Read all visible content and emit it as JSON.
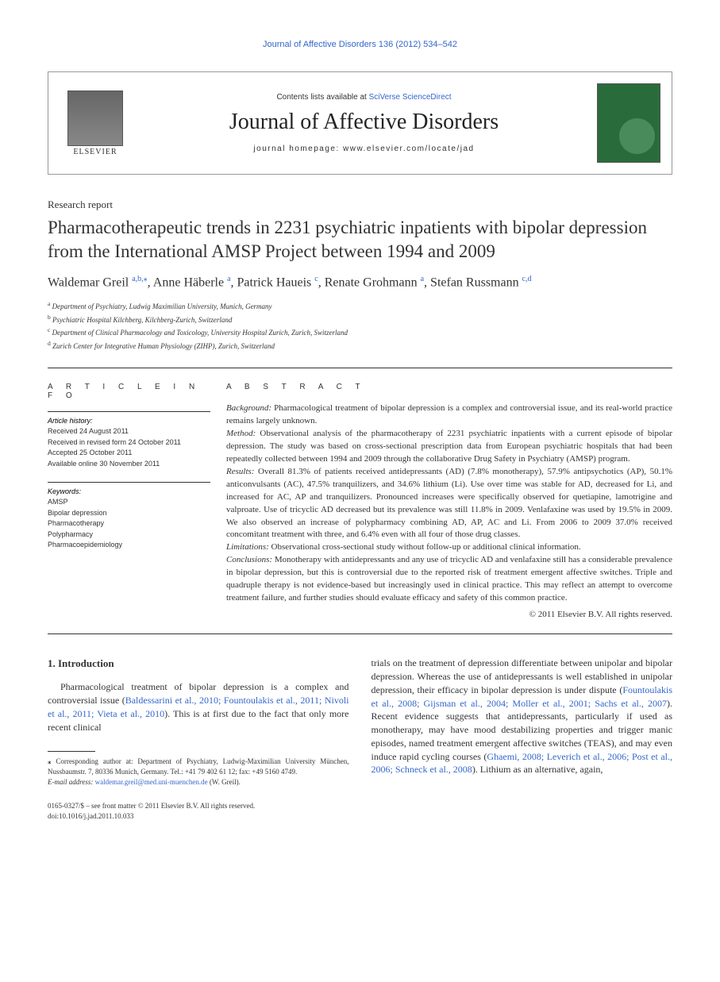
{
  "running_header": "Journal of Affective Disorders 136 (2012) 534–542",
  "masthead": {
    "contents_prefix": "Contents lists available at ",
    "contents_link": "SciVerse ScienceDirect",
    "journal_name": "Journal of Affective Disorders",
    "homepage_prefix": "journal homepage: ",
    "homepage_url": "www.elsevier.com/locate/jad",
    "publisher": "ELSEVIER"
  },
  "article_type": "Research report",
  "title": "Pharmacotherapeutic trends in 2231 psychiatric inpatients with bipolar depression from the International AMSP Project between 1994 and 2009",
  "authors": [
    {
      "name": "Waldemar Greil",
      "aff": "a,b,",
      "corr": true
    },
    {
      "name": "Anne Häberle",
      "aff": "a"
    },
    {
      "name": "Patrick Haueis",
      "aff": "c"
    },
    {
      "name": "Renate Grohmann",
      "aff": "a"
    },
    {
      "name": "Stefan Russmann",
      "aff": "c,d"
    }
  ],
  "affiliations": [
    {
      "key": "a",
      "text": "Department of Psychiatry, Ludwig Maximilian University, Munich, Germany"
    },
    {
      "key": "b",
      "text": "Psychiatric Hospital Kilchberg, Kilchberg-Zurich, Switzerland"
    },
    {
      "key": "c",
      "text": "Department of Clinical Pharmacology and Toxicology, University Hospital Zurich, Zurich, Switzerland"
    },
    {
      "key": "d",
      "text": "Zurich Center for Integrative Human Physiology (ZIHP), Zurich, Switzerland"
    }
  ],
  "info": {
    "heading": "A R T I C L E   I N F O",
    "history_label": "Article history:",
    "history": [
      "Received 24 August 2011",
      "Received in revised form 24 October 2011",
      "Accepted 25 October 2011",
      "Available online 30 November 2011"
    ],
    "keywords_label": "Keywords:",
    "keywords": [
      "AMSP",
      "Bipolar depression",
      "Pharmacotherapy",
      "Polypharmacy",
      "Pharmacoepidemiology"
    ]
  },
  "abstract": {
    "heading": "A B S T R A C T",
    "sections": [
      {
        "label": "Background:",
        "text": " Pharmacological treatment of bipolar depression is a complex and controversial issue, and its real-world practice remains largely unknown."
      },
      {
        "label": "Method:",
        "text": " Observational analysis of the pharmacotherapy of 2231 psychiatric inpatients with a current episode of bipolar depression. The study was based on cross-sectional prescription data from European psychiatric hospitals that had been repeatedly collected between 1994 and 2009 through the collaborative Drug Safety in Psychiatry (AMSP) program."
      },
      {
        "label": "Results:",
        "text": " Overall 81.3% of patients received antidepressants (AD) (7.8% monotherapy), 57.9% antipsychotics (AP), 50.1% anticonvulsants (AC), 47.5% tranquilizers, and 34.6% lithium (Li). Use over time was stable for AD, decreased for Li, and increased for AC, AP and tranquilizers. Pronounced increases were specifically observed for quetiapine, lamotrigine and valproate. Use of tricyclic AD decreased but its prevalence was still 11.8% in 2009. Venlafaxine was used by 19.5% in 2009. We also observed an increase of polypharmacy combining AD, AP, AC and Li. From 2006 to 2009 37.0% received concomitant treatment with three, and 6.4% even with all four of those drug classes."
      },
      {
        "label": "Limitations:",
        "text": " Observational cross-sectional study without follow-up or additional clinical information."
      },
      {
        "label": "Conclusions:",
        "text": " Monotherapy with antidepressants and any use of tricyclic AD and venlafaxine still has a considerable prevalence in bipolar depression, but this is controversial due to the reported risk of treatment emergent affective switches. Triple and quadruple therapy is not evidence-based but increasingly used in clinical practice. This may reflect an attempt to overcome treatment failure, and further studies should evaluate efficacy and safety of this common practice."
      }
    ],
    "copyright": "© 2011 Elsevier B.V. All rights reserved."
  },
  "body": {
    "heading": "1. Introduction",
    "col1_para1_before": "Pharmacological treatment of bipolar depression is a complex and controversial issue (",
    "col1_para1_ref": "Baldessarini et al., 2010; Fountoulakis et al., 2011; Nivoli et al., 2011; Vieta et al., 2010",
    "col1_para1_after": "). This is at first due to the fact that only more recent clinical",
    "col2_before1": "trials on the treatment of depression differentiate between unipolar and bipolar depression. Whereas the use of antidepressants is well established in unipolar depression, their efficacy in bipolar depression is under dispute (",
    "col2_ref1": "Fountoulakis et al., 2008; Gijsman et al., 2004; Moller et al., 2001; Sachs et al., 2007",
    "col2_mid": "). Recent evidence suggests that antidepressants, particularly if used as monotherapy, may have mood destabilizing properties and trigger manic episodes, named treatment emergent affective switches (TEAS), and may even induce rapid cycling courses (",
    "col2_ref2": "Ghaemi, 2008; Leverich et al., 2006; Post et al., 2006; Schneck et al., 2008",
    "col2_after": "). Lithium as an alternative, again,"
  },
  "footnote": {
    "corr": "Corresponding author at: Department of Psychiatry, Ludwig-Maximilian University München, Nussbaumstr. 7, 80336 Munich, Germany. Tel.: +41 79 402 61 12; fax: +49 5160 4749.",
    "email_label": "E-mail address:",
    "email": "waldemar.greil@med.uni-muenchen.de",
    "email_name": "(W. Greil)."
  },
  "footer": {
    "issn": "0165-0327/$ – see front matter © 2011 Elsevier B.V. All rights reserved.",
    "doi": "doi:10.1016/j.jad.2011.10.033"
  },
  "colors": {
    "link": "#3366cc",
    "text": "#333333",
    "rule": "#333333"
  }
}
